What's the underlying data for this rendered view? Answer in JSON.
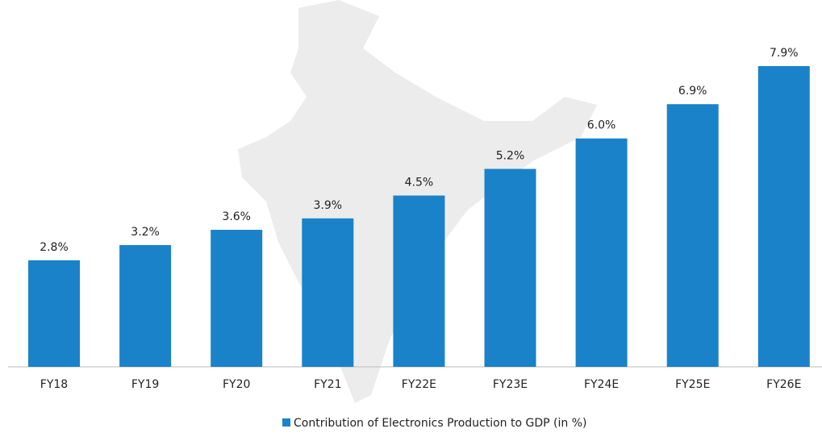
{
  "chart_data": {
    "type": "bar",
    "categories": [
      "FY18",
      "FY19",
      "FY20",
      "FY21",
      "FY22E",
      "FY23E",
      "FY24E",
      "FY25E",
      "FY26E"
    ],
    "series": [
      {
        "name": "Contribution of Electronics Production to GDP (in %)",
        "color": "#1a82c8",
        "values": [
          2.8,
          3.2,
          3.6,
          3.9,
          4.5,
          5.2,
          6.0,
          6.9,
          7.9
        ],
        "value_labels": [
          "2.8%",
          "3.2%",
          "3.6%",
          "3.9%",
          "4.5%",
          "5.2%",
          "6.0%",
          "6.9%",
          "7.9%"
        ]
      }
    ]
  }
}
